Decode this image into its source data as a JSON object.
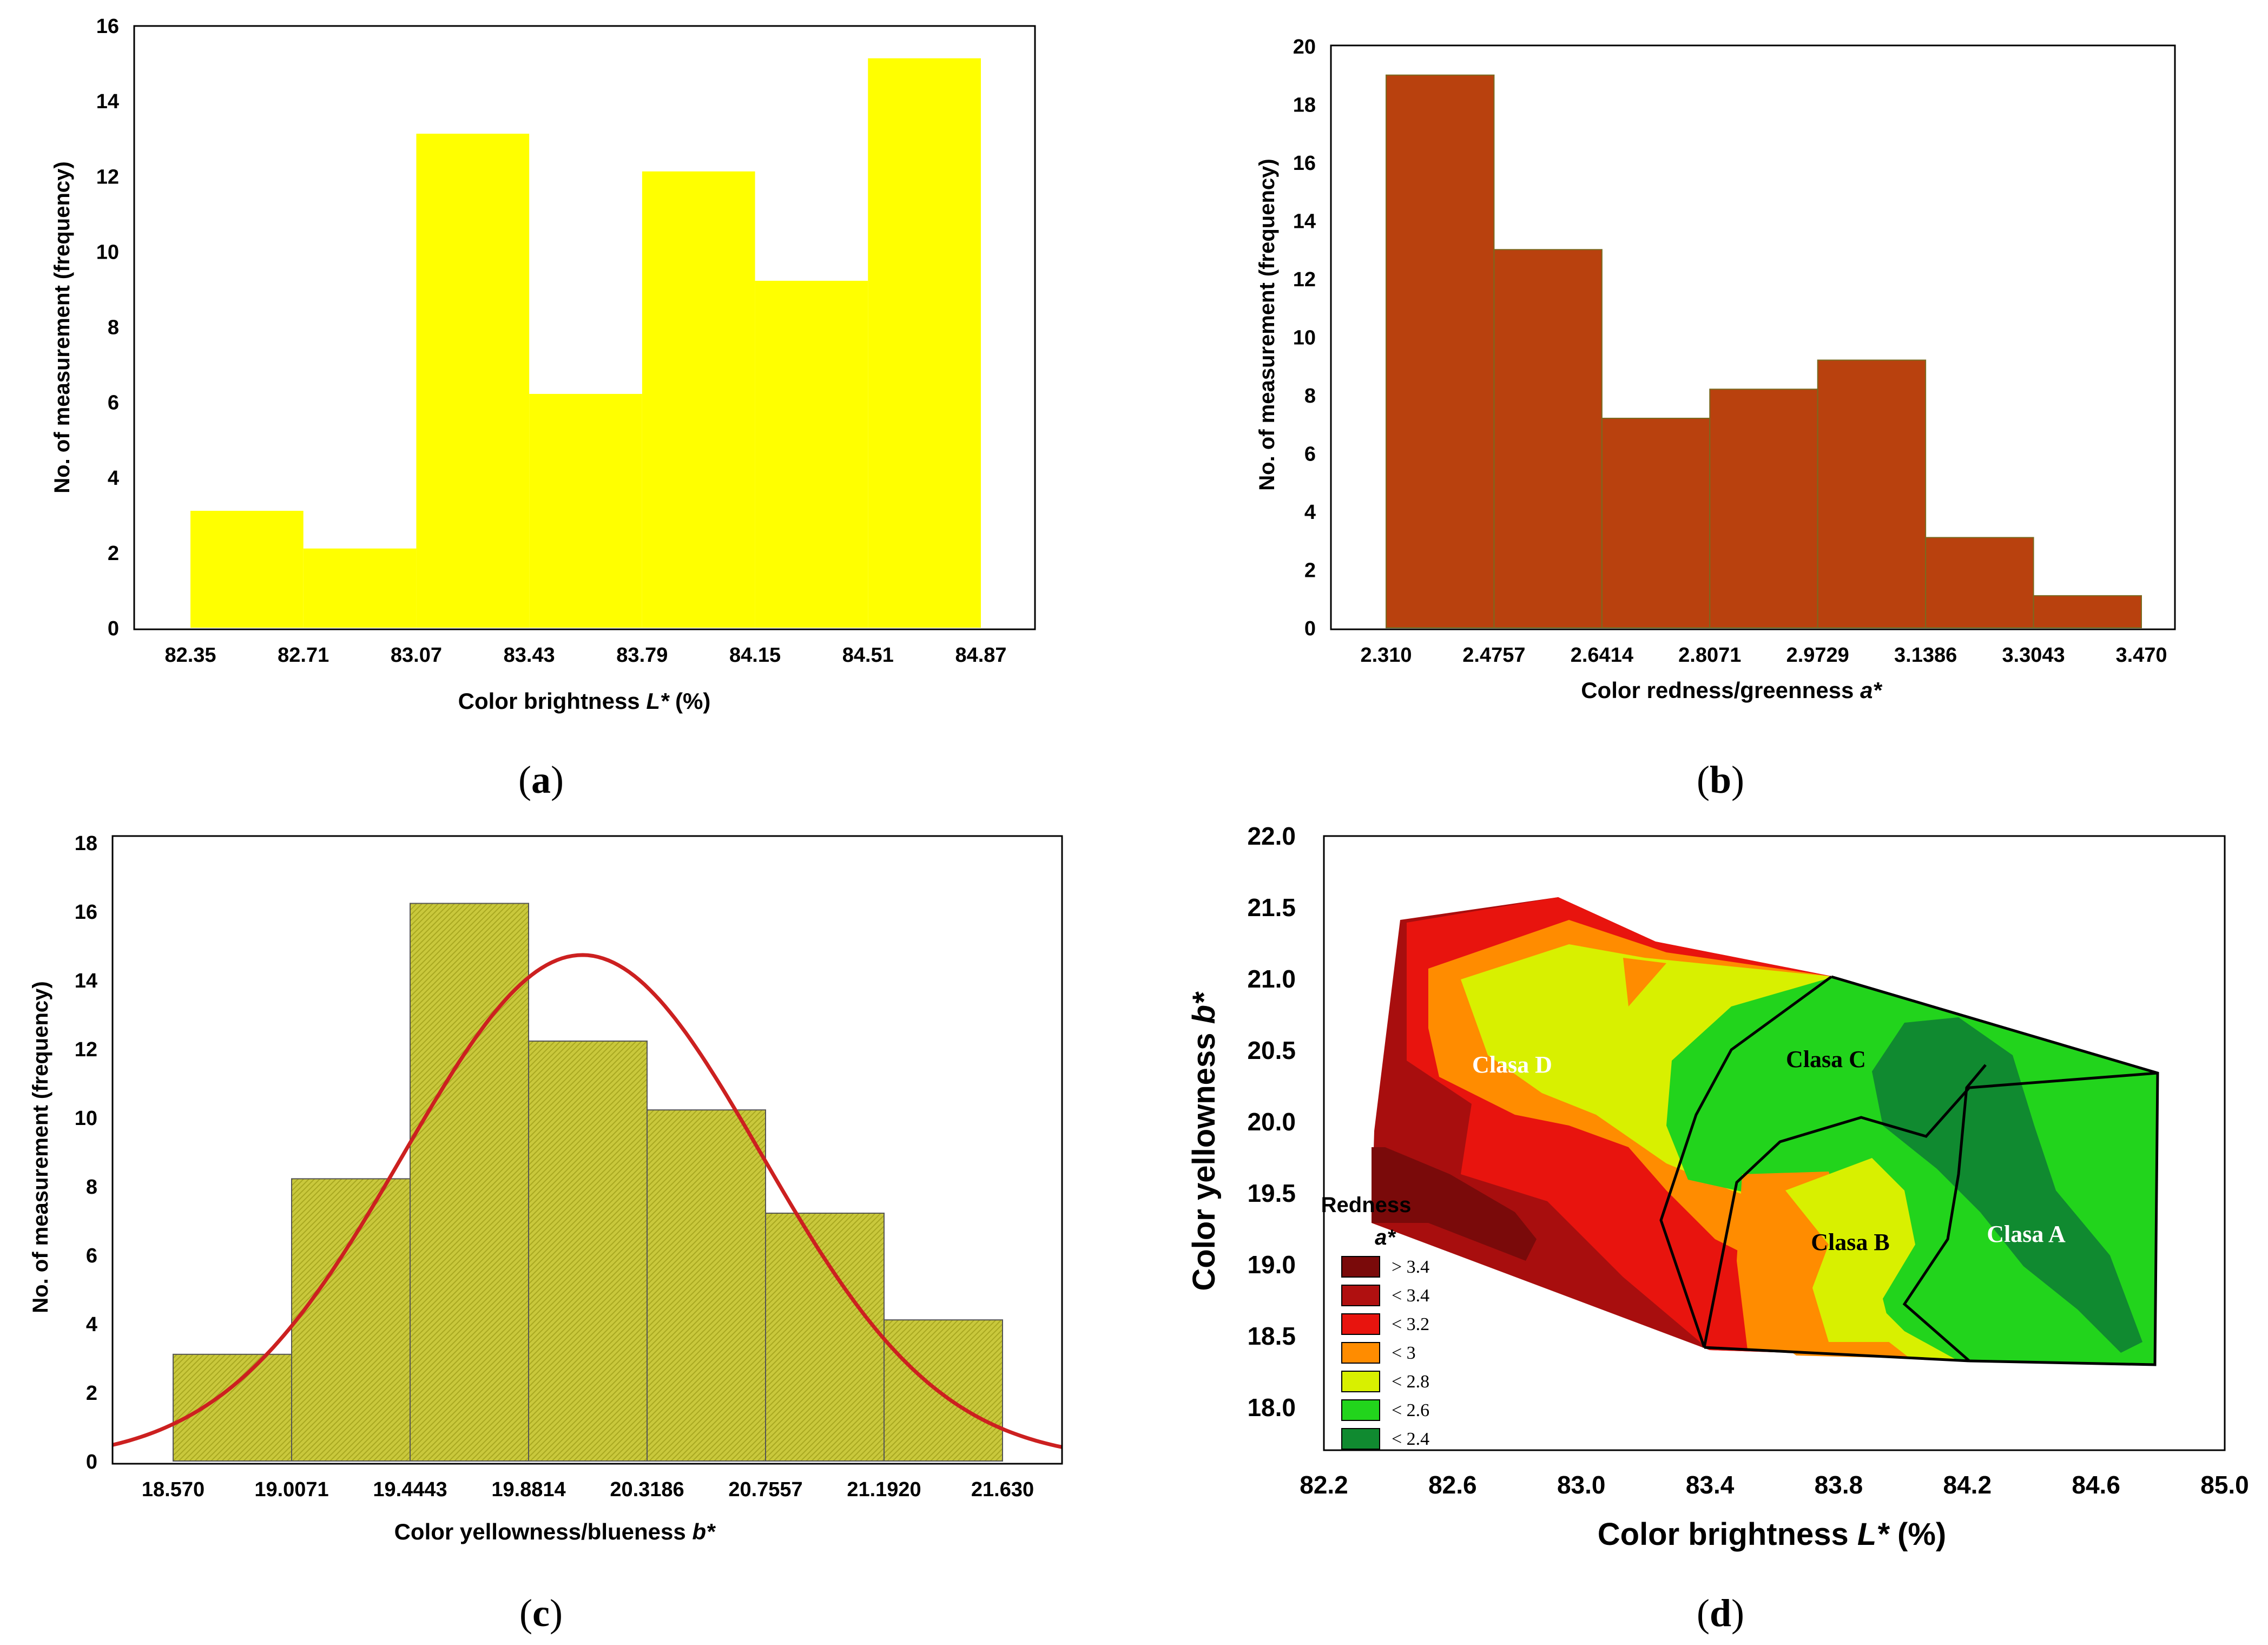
{
  "chart_data": [
    {
      "panel": "a",
      "type": "bar",
      "title": "",
      "xlabel_main": "Color brightness ",
      "xlabel_italic": "L*",
      "xlabel_tail": " (%)",
      "ylabel": "No. of measurement (frequency)",
      "bin_edges": [
        "82.35",
        "82.71",
        "83.07",
        "83.43",
        "83.79",
        "84.15",
        "84.51",
        "84.87"
      ],
      "values": [
        3.1,
        2.1,
        13.1,
        6.2,
        12.1,
        9.2,
        15.1
      ],
      "yticks": [
        "0",
        "2",
        "4",
        "6",
        "8",
        "10",
        "12",
        "14",
        "16"
      ],
      "ylim": [
        0,
        16
      ],
      "bar_color": "#ffff00",
      "grid": false
    },
    {
      "panel": "b",
      "type": "bar",
      "xlabel_main": "Color redness/greenness ",
      "xlabel_italic": "a*",
      "xlabel_tail": "",
      "ylabel": "No. of measurement (frequency)",
      "bin_edges": [
        "2.310",
        "2.4757",
        "2.6414",
        "2.8071",
        "2.9729",
        "3.1386",
        "3.3043",
        "3.470"
      ],
      "values": [
        19,
        13,
        7.2,
        8.2,
        9.2,
        3.1,
        1.1
      ],
      "yticks": [
        "0",
        "2",
        "4",
        "6",
        "8",
        "10",
        "12",
        "14",
        "16",
        "18",
        "20"
      ],
      "ylim": [
        0,
        20
      ],
      "bar_color": "#b9410e",
      "grid": false
    },
    {
      "panel": "c",
      "type": "bar",
      "xlabel_main": "Color yellowness/blueness ",
      "xlabel_italic": "b*",
      "xlabel_tail": "",
      "ylabel": "No. of measurement (frequency)",
      "bin_edges": [
        "18.570",
        "19.0071",
        "19.4443",
        "19.8814",
        "20.3186",
        "20.7557",
        "21.1920",
        "21.630"
      ],
      "values": [
        3.1,
        8.2,
        16.2,
        12.2,
        10.2,
        7.2,
        4.1
      ],
      "yticks": [
        "0",
        "2",
        "4",
        "6",
        "8",
        "10",
        "12",
        "14",
        "16",
        "18"
      ],
      "ylim": [
        0,
        18
      ],
      "bar_color": "#c8c83a",
      "normal_fit": {
        "mean": 20.08,
        "sd": 0.66,
        "peak": 14.7,
        "color": "#cc2020"
      },
      "grid": false
    },
    {
      "panel": "d",
      "type": "heatmap",
      "xlabel_main": "Color brightness ",
      "xlabel_italic": "L*",
      "xlabel_tail": " (%)",
      "ylabel_main": "Color yellowness ",
      "ylabel_italic": "b*",
      "xticks": [
        "82.2",
        "82.6",
        "83.0",
        "83.4",
        "83.8",
        "84.2",
        "84.6",
        "85.0"
      ],
      "yticks": [
        "18.0",
        "18.5",
        "19.0",
        "19.5",
        "20.0",
        "20.5",
        "21.0",
        "21.5",
        "22.0"
      ],
      "xlim": [
        82.2,
        85.0
      ],
      "ylim": [
        17.7,
        22.0
      ],
      "legend_title_1": "Redness",
      "legend_title_2": "a*",
      "legend": [
        {
          "label": "> 3.4",
          "color": "#7a0a0a"
        },
        {
          "label": "< 3.4",
          "color": "#b01010"
        },
        {
          "label": "< 3.2",
          "color": "#e8140e"
        },
        {
          "label": "< 3",
          "color": "#ff8c00"
        },
        {
          "label": "< 2.8",
          "color": "#d8f000"
        },
        {
          "label": "< 2.6",
          "color": "#22d41c"
        },
        {
          "label": "< 2.4",
          "color": "#108a30"
        }
      ],
      "classes": [
        "Clasa A",
        "Clasa B",
        "Clasa C",
        "Clasa D"
      ]
    }
  ],
  "panel_labels": [
    "a",
    "b",
    "c",
    "d"
  ]
}
